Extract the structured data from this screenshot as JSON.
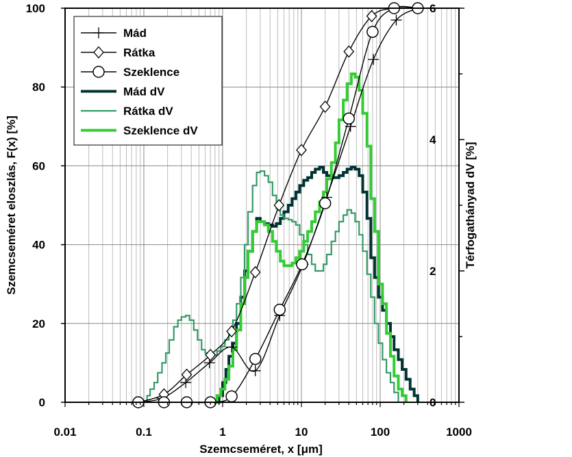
{
  "chart_data": {
    "type": "line",
    "xlabel": "Szemcseméret, x [μm]",
    "ylabel": "Szemcseméret eloszlás, F(x) [%]",
    "y2label": "Térfogathányad dV [%]",
    "xscale": "log",
    "xlim": [
      0.01,
      1000
    ],
    "ylim": [
      0,
      100
    ],
    "y2lim": [
      0,
      6
    ],
    "xticks": [
      "0.01",
      "0.1",
      "1",
      "10",
      "100",
      "1000"
    ],
    "yticks": [
      "0",
      "20",
      "40",
      "60",
      "80",
      "100"
    ],
    "y2ticks": [
      "0",
      "2",
      "4",
      "6"
    ],
    "grid": true,
    "legend_position": "top-left",
    "series": [
      {
        "name": "Mád",
        "axis": "left",
        "marker": "plus",
        "color": "#000000",
        "x": [
          0.085,
          0.17,
          0.34,
          0.68,
          1.3,
          2.6,
          5.3,
          10.5,
          21,
          42,
          82,
          160,
          300
        ],
        "y": [
          0,
          1,
          5,
          10,
          14,
          8,
          22,
          35,
          52,
          70,
          87,
          97,
          100
        ]
      },
      {
        "name": "Rátka",
        "axis": "left",
        "marker": "diamond",
        "color": "#000000",
        "x": [
          0.085,
          0.18,
          0.35,
          0.7,
          1.3,
          2.6,
          5.2,
          10,
          20,
          40,
          78,
          150,
          300
        ],
        "y": [
          0,
          2,
          7,
          12,
          18,
          33,
          50,
          64,
          75,
          89,
          98,
          100,
          100
        ]
      },
      {
        "name": "Szeklence",
        "axis": "left",
        "marker": "circle",
        "color": "#000000",
        "x": [
          0.085,
          0.18,
          0.35,
          0.7,
          1.3,
          2.6,
          5.3,
          10.2,
          20,
          40,
          80,
          150,
          300
        ],
        "y": [
          0,
          0,
          0,
          0,
          1.5,
          11,
          23.5,
          35,
          50.5,
          72,
          94,
          100,
          100
        ]
      },
      {
        "name": "Mád dV",
        "axis": "right",
        "marker": "none",
        "color": "#003333",
        "stepped": true,
        "x": [
          0.8,
          0.9,
          1.0,
          1.1,
          1.2,
          1.35,
          1.5,
          1.7,
          1.9,
          2.1,
          2.4,
          2.7,
          3.0,
          3.4,
          3.8,
          4.3,
          4.8,
          5.4,
          6.0,
          6.8,
          7.6,
          8.5,
          9.5,
          10.7,
          12,
          13.5,
          15,
          17,
          19,
          21,
          24,
          27,
          30,
          34,
          38,
          43,
          48,
          54,
          60,
          68,
          76,
          85,
          95,
          107,
          120,
          135,
          150,
          170,
          190,
          213,
          240,
          270,
          300
        ],
        "y": [
          0,
          0.1,
          0.3,
          0.5,
          0.7,
          0.9,
          1.2,
          1.6,
          2.0,
          2.3,
          2.6,
          2.8,
          2.75,
          2.72,
          2.7,
          2.68,
          2.72,
          2.8,
          2.9,
          3.0,
          3.1,
          3.2,
          3.3,
          3.38,
          3.42,
          3.5,
          3.55,
          3.58,
          3.5,
          3.45,
          3.42,
          3.42,
          3.45,
          3.5,
          3.55,
          3.58,
          3.55,
          3.45,
          3.2,
          2.8,
          2.2,
          1.9,
          1.6,
          1.4,
          1.2,
          1.0,
          0.8,
          0.65,
          0.5,
          0.35,
          0.2,
          0.1,
          0
        ]
      },
      {
        "name": "Rátka dV",
        "axis": "right",
        "marker": "none",
        "color": "#339966",
        "stepped": true,
        "x": [
          0.1,
          0.11,
          0.12,
          0.135,
          0.15,
          0.17,
          0.19,
          0.21,
          0.24,
          0.27,
          0.3,
          0.34,
          0.38,
          0.43,
          0.48,
          0.54,
          0.6,
          0.68,
          0.76,
          0.85,
          0.95,
          1.07,
          1.2,
          1.35,
          1.5,
          1.7,
          1.9,
          2.1,
          2.4,
          2.7,
          3.0,
          3.4,
          3.8,
          4.3,
          4.8,
          5.4,
          6.0,
          6.8,
          7.6,
          8.5,
          9.5,
          10.7,
          12,
          13.5,
          15,
          17,
          19,
          21,
          24,
          27,
          30,
          34,
          38,
          43,
          48,
          54,
          60,
          68,
          76,
          85,
          95,
          107,
          120,
          135,
          150,
          170
        ],
        "y": [
          0,
          0.1,
          0.2,
          0.3,
          0.45,
          0.6,
          0.75,
          0.95,
          1.15,
          1.25,
          1.3,
          1.32,
          1.25,
          1.1,
          0.95,
          0.8,
          0.75,
          0.7,
          0.72,
          0.78,
          0.85,
          0.95,
          1.05,
          1.25,
          1.5,
          1.9,
          2.4,
          2.9,
          3.3,
          3.5,
          3.52,
          3.45,
          3.35,
          3.15,
          2.95,
          2.85,
          2.8,
          2.78,
          2.75,
          2.7,
          2.55,
          2.4,
          2.25,
          2.1,
          2.0,
          2.0,
          2.1,
          2.25,
          2.45,
          2.6,
          2.75,
          2.85,
          2.93,
          2.88,
          2.75,
          2.55,
          2.3,
          1.95,
          1.6,
          1.2,
          0.9,
          0.65,
          0.45,
          0.3,
          0.15,
          0
        ]
      },
      {
        "name": "Szeklence dV",
        "axis": "right",
        "marker": "none",
        "color": "#33cc33",
        "stepped": true,
        "x": [
          0.75,
          0.85,
          0.95,
          1.07,
          1.2,
          1.35,
          1.5,
          1.7,
          1.9,
          2.1,
          2.4,
          2.7,
          3.0,
          3.4,
          3.8,
          4.3,
          4.8,
          5.4,
          6.0,
          6.8,
          7.6,
          8.5,
          9.5,
          10.7,
          12,
          13.5,
          15,
          17,
          19,
          21,
          24,
          27,
          30,
          34,
          38,
          43,
          48,
          54,
          60,
          68,
          76,
          85,
          95,
          107,
          120,
          135,
          150,
          170,
          190,
          213
        ],
        "y": [
          0,
          0.1,
          0.2,
          0.35,
          0.55,
          0.8,
          1.1,
          1.5,
          1.9,
          2.3,
          2.6,
          2.75,
          2.75,
          2.7,
          2.6,
          2.45,
          2.3,
          2.15,
          2.08,
          2.08,
          2.12,
          2.2,
          2.3,
          2.45,
          2.6,
          2.75,
          2.9,
          3.05,
          3.2,
          3.4,
          3.65,
          3.95,
          4.3,
          4.6,
          4.85,
          5.0,
          4.95,
          4.75,
          4.4,
          3.9,
          3.1,
          2.6,
          1.8,
          1.5,
          1.05,
          0.7,
          0.4,
          0.2,
          0.1,
          0
        ]
      }
    ]
  }
}
